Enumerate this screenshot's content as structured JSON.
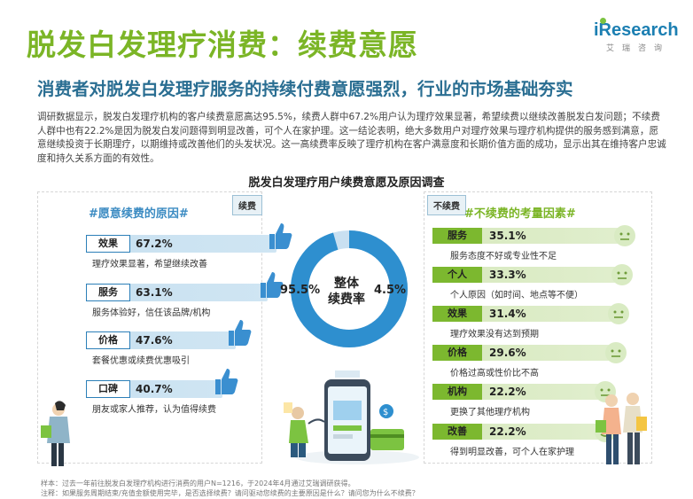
{
  "header": {
    "title": "脱发白发理疗消费：续费意愿",
    "subtitle": "消费者对脱发白发理疗服务的持续付费意愿强烈，行业的市场基础夯实",
    "logo_text": "iResearch",
    "logo_sub": "艾瑞咨询"
  },
  "intro": "调研数据显示，脱发白发理疗机构的客户续费意愿高达95.5%，续费人群中67.2%用户认为理疗效果显著，希望续费以继续改善脱发白发问题；不续费人群中也有22.2%是因为脱发白发问题得到明显改善，可个人在家护理。这一结论表明，绝大多数用户对理疗效果与理疗机构提供的服务感到满意，愿意继续投资于长期理疗，以期维持或改善他们的头发状况。这一高续费率反映了理疗机构在客户满意度和长期价值方面的成功，显示出其在维持客户忠诚度和持久关系方面的有效性。",
  "chart_title": "脱发白发理疗用户续费意愿及原因调查",
  "left": {
    "tag": "续费",
    "heading": "#愿意续费的原因#",
    "items": [
      {
        "label": "效果",
        "pct": "67.2%",
        "value": 67.2,
        "desc": "理疗效果显著，希望继续改善"
      },
      {
        "label": "服务",
        "pct": "63.1%",
        "value": 63.1,
        "desc": "服务体验好，信任该品牌/机构"
      },
      {
        "label": "价格",
        "pct": "47.6%",
        "value": 47.6,
        "desc": "套餐优惠或续费优惠吸引"
      },
      {
        "label": "口碑",
        "pct": "40.7%",
        "value": 40.7,
        "desc": "朋友或家人推荐，认为值得续费"
      }
    ]
  },
  "right": {
    "tag": "不续费",
    "heading": "#不续费的考量因素#",
    "items": [
      {
        "label": "服务",
        "pct": "35.1%",
        "value": 35.1,
        "desc": "服务态度不好或专业性不足"
      },
      {
        "label": "个人",
        "pct": "33.3%",
        "value": 33.3,
        "desc": "个人原因（如时间、地点等不便）"
      },
      {
        "label": "效果",
        "pct": "31.4%",
        "value": 31.4,
        "desc": "理疗效果没有达到预期"
      },
      {
        "label": "价格",
        "pct": "29.6%",
        "value": 29.6,
        "desc": "价格过高或性价比不高"
      },
      {
        "label": "机构",
        "pct": "22.2%",
        "value": 22.2,
        "desc": "更换了其他理疗机构"
      },
      {
        "label": "改善",
        "pct": "22.2%",
        "value": 22.2,
        "desc": "得到明显改善，可个人在家护理"
      }
    ]
  },
  "donut": {
    "center_line1": "整体",
    "center_line2": "续费率",
    "renew_label": "95.5%",
    "renew_value": 95.5,
    "norenew_label": "4.5%",
    "norenew_value": 4.5,
    "colors": {
      "renew": "#2e8fcf",
      "norenew": "#c9e0f1"
    }
  },
  "notes": {
    "sample": "样本：过去一年前往脱发白发理疗机构进行消费的用户N=1216，于2024年4月通过艾瑞调研获得。",
    "note": "注释：如果服务周期结束/充值金额使用完毕，是否选择续费？请问驱动您续费的主要原因是什么？请问您为什么不续费？"
  },
  "colors": {
    "accent_green": "#7bb526",
    "accent_blue": "#2c7fb8",
    "subtitle": "#2a6e92"
  }
}
